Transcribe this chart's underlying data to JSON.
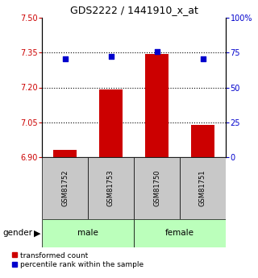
{
  "title": "GDS2222 / 1441910_x_at",
  "samples": [
    "GSM81752",
    "GSM81753",
    "GSM81750",
    "GSM81751"
  ],
  "bar_values": [
    6.93,
    7.19,
    7.345,
    7.04
  ],
  "bar_baseline": 6.9,
  "percentile_values": [
    70.5,
    72.5,
    75.5,
    70.5
  ],
  "left_ylim": [
    6.9,
    7.5
  ],
  "left_yticks": [
    6.9,
    7.05,
    7.2,
    7.35,
    7.5
  ],
  "right_ylim": [
    0,
    100
  ],
  "right_yticks": [
    0,
    25,
    50,
    75,
    100
  ],
  "right_yticklabels": [
    "0",
    "25",
    "50",
    "75",
    "100%"
  ],
  "bar_color": "#cc0000",
  "dot_color": "#0000cc",
  "gender_groups": [
    {
      "label": "male",
      "color": "#bbffbb"
    },
    {
      "label": "female",
      "color": "#bbffbb"
    }
  ],
  "sample_box_color": "#c8c8c8",
  "left_tick_color": "#cc0000",
  "right_tick_color": "#0000cc",
  "legend_items": [
    {
      "label": "transformed count",
      "color": "#cc0000"
    },
    {
      "label": "percentile rank within the sample",
      "color": "#0000cc"
    }
  ],
  "fig_width": 3.2,
  "fig_height": 3.45,
  "dpi": 100
}
